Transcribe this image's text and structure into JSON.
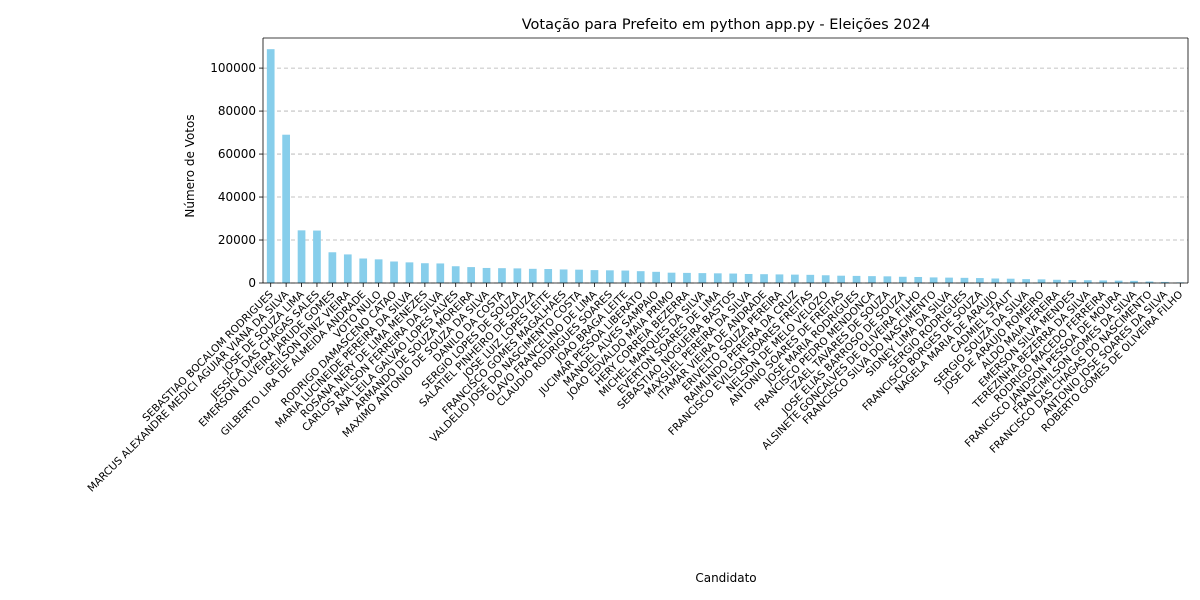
{
  "chart_data": {
    "type": "bar",
    "title": "Votação para Prefeito em python app.py - Eleições 2024",
    "xlabel": "Candidato",
    "ylabel": "Número de Votos",
    "ylim": [
      0,
      114000
    ],
    "yticks": [
      0,
      20000,
      40000,
      60000,
      80000,
      100000
    ],
    "yticklabels": [
      "0",
      "20000",
      "40000",
      "60000",
      "80000",
      "100000"
    ],
    "grid": "y-dashed",
    "bar_color": "#87ceeb",
    "categories": [
      "SEBASTIAO BOCALOM RODRIGUES",
      "MARCUS ALEXANDRE MEDICI AGUIAR VIANA DA SILVA",
      "JOSE DE SOUZA LIMA",
      "JESSICA DAS CHAGAS SALES",
      "EMERSON OLIVEIRA JARUDE GOMES",
      "GEILSON DINIZ VIEIRA",
      "GILBERTO LIRA DE ALMEIDA ANDRADE",
      "VOTO NULO",
      "RODRIGO DAMASCENO CATAO",
      "MARIA LUCINEIDE PEREIRA DA SILVA",
      "ROSANA NERY DE LIMA MENEZES",
      "CARLOS RAILSON FERREIRA DA SILVA",
      "ANA LEILA GALVAO LOPES ALVES",
      "ARMANDO DE SOUZA MOREIRA",
      "MAXIMO ANTONIO DE SOUZA DA SILVA",
      "DANILO DA COSTA",
      "SERGIO LOPES DE SOUZA",
      "SALATIEL PINHEIRO DE SOUZA",
      "JOSE LUIZ LOPES LEITE",
      "FRANCISCO GOMES MAGALHAES",
      "VALDELIO JOSE DO NASCIMENTO COSTA",
      "OLAVO FRANCELINO DE LIMA",
      "CLAUDIO RODRIGUES SOARES",
      "JOAO BRAGA LEITE",
      "JUCIMAR PESSOA LIBERATO",
      "MANOEL ALVES SAMPAIO",
      "JOAO EDVALDO MAIA PRIMO",
      "HERY CORREIA BEZERRA",
      "MICHEL MARQUES DA SILVA",
      "EVERTON SOARES DE LIMA",
      "SEBASTIAO NOGUEIRA BASTOS",
      "MAXSUEL PEREIRA DA SILVA",
      "ITAMAR VIEIRA DE ANDRADE",
      "ERIVELTO SOUZA PEREIRA",
      "RAIMUNDO PEREIRA DA CRUZ",
      "FRANCISCO EVILSON SOARES FREITAS",
      "NELSON DE MELO VELOZO",
      "ANTONIO SOARES DE FREITAS",
      "JOSE MARIA RODRIGUES",
      "FRANCISCO PEDRO MENDONCA",
      "IZAEL TAVARES DE SOUZA",
      "JOSE ELIAS BARROSO DE SOUZA",
      "ALSINETE GONCALVES DE OLIVEIRA FILHO",
      "FRANCISCO SILVA DO NASCIMENTO",
      "SIDNEY LIMA DA SILVA",
      "SERGIO RODRIGUES",
      "FRANCISCO BORGES DE SOUZA",
      "NAGELA MARIA DE ARAUJO",
      "CADMIEL STAUT",
      "SERGIO SOUZA DA SILVA",
      "JOSE DE ARAUJO ROMEIRO",
      "ALDO MAIA PEREIRA",
      "EMERSON SILVA MENDES",
      "TEREZINHA BEZERRA DA SILVA",
      "RODRIGO MACEDO FERREIRA",
      "FRANCISCO JANDSON PESSOA DE MOURA",
      "FRANCIMILSON GOMES DA SILVA",
      "FRANCISCO DAS CHAGAS DO NASCIMENTO",
      "ANTONIO JOSE SOARES DA SILVA",
      "ROBERTO GOMES DE OLIVEIRA FILHO"
    ],
    "values": [
      108800,
      69000,
      24500,
      24400,
      14300,
      13300,
      11400,
      11000,
      10000,
      9600,
      9200,
      9100,
      7800,
      7400,
      7000,
      6900,
      6800,
      6600,
      6500,
      6300,
      6200,
      6000,
      5900,
      5800,
      5500,
      5200,
      4800,
      4700,
      4600,
      4500,
      4400,
      4200,
      4100,
      4000,
      3900,
      3800,
      3600,
      3400,
      3300,
      3200,
      3100,
      2900,
      2800,
      2600,
      2500,
      2400,
      2300,
      2100,
      2000,
      1800,
      1700,
      1500,
      1400,
      1300,
      1200,
      1100,
      1000,
      700,
      500,
      300
    ]
  }
}
